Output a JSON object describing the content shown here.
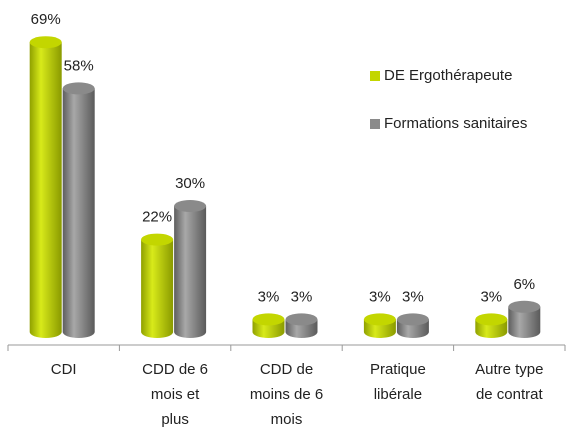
{
  "chart_data": {
    "type": "bar",
    "categories": [
      "CDI",
      "CDD de 6 mois et plus",
      "CDD de moins de 6 mois",
      "Pratique libérale",
      "Autre type de contrat"
    ],
    "series": [
      {
        "name": "DE Ergothérapeute",
        "color": "#c3d600",
        "values": [
          69,
          22,
          3,
          3,
          3
        ],
        "value_labels": [
          "69%",
          "22%",
          "3%",
          "3%",
          "3%"
        ]
      },
      {
        "name": "Formations sanitaires",
        "color": "#8a8a8a",
        "values": [
          58,
          30,
          3,
          3,
          6
        ],
        "value_labels": [
          "58%",
          "30%",
          "3%",
          "3%",
          "6%"
        ]
      }
    ],
    "legend": "right"
  }
}
